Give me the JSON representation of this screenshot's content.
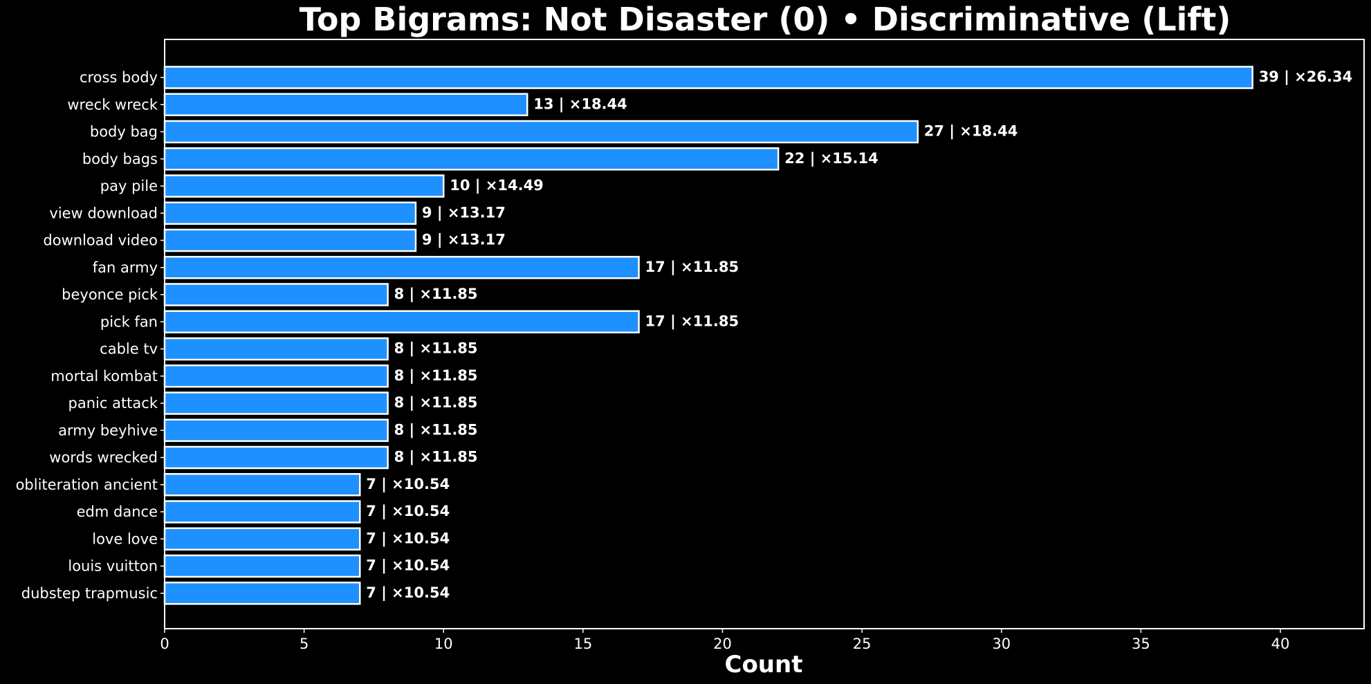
{
  "chart_data": {
    "type": "bar",
    "orientation": "horizontal",
    "title": "Top Bigrams: Not Disaster (0) • Discriminative (Lift)",
    "xlabel": "Count",
    "ylabel": "",
    "xlim": [
      0,
      43
    ],
    "xticks": [
      0,
      5,
      10,
      15,
      20,
      25,
      30,
      35,
      40
    ],
    "grid": false,
    "colors": {
      "background": "#000000",
      "bar": "#1e90ff",
      "bar_edge": "#ffffff",
      "text": "#ffffff"
    },
    "categories": [
      "cross body",
      "wreck wreck",
      "body bag",
      "body bags",
      "pay pile",
      "view download",
      "download video",
      "fan army",
      "beyonce pick",
      "pick fan",
      "cable tv",
      "mortal kombat",
      "panic attack",
      "army beyhive",
      "words wrecked",
      "obliteration ancient",
      "edm dance",
      "love love",
      "louis vuitton",
      "dubstep trapmusic"
    ],
    "values": [
      39,
      13,
      27,
      22,
      10,
      9,
      9,
      17,
      8,
      17,
      8,
      8,
      8,
      8,
      8,
      7,
      7,
      7,
      7,
      7
    ],
    "lift": [
      26.34,
      18.44,
      18.44,
      15.14,
      14.49,
      13.17,
      13.17,
      11.85,
      11.85,
      11.85,
      11.85,
      11.85,
      11.85,
      11.85,
      11.85,
      10.54,
      10.54,
      10.54,
      10.54,
      10.54
    ],
    "data_labels": [
      "39 | ×26.34",
      "13 | ×18.44",
      "27 | ×18.44",
      "22 | ×15.14",
      "10 | ×14.49",
      "9 | ×13.17",
      "9 | ×13.17",
      "17 | ×11.85",
      "8 | ×11.85",
      "17 | ×11.85",
      "8 | ×11.85",
      "8 | ×11.85",
      "8 | ×11.85",
      "8 | ×11.85",
      "8 | ×11.85",
      "7 | ×10.54",
      "7 | ×10.54",
      "7 | ×10.54",
      "7 | ×10.54",
      "7 | ×10.54"
    ]
  }
}
